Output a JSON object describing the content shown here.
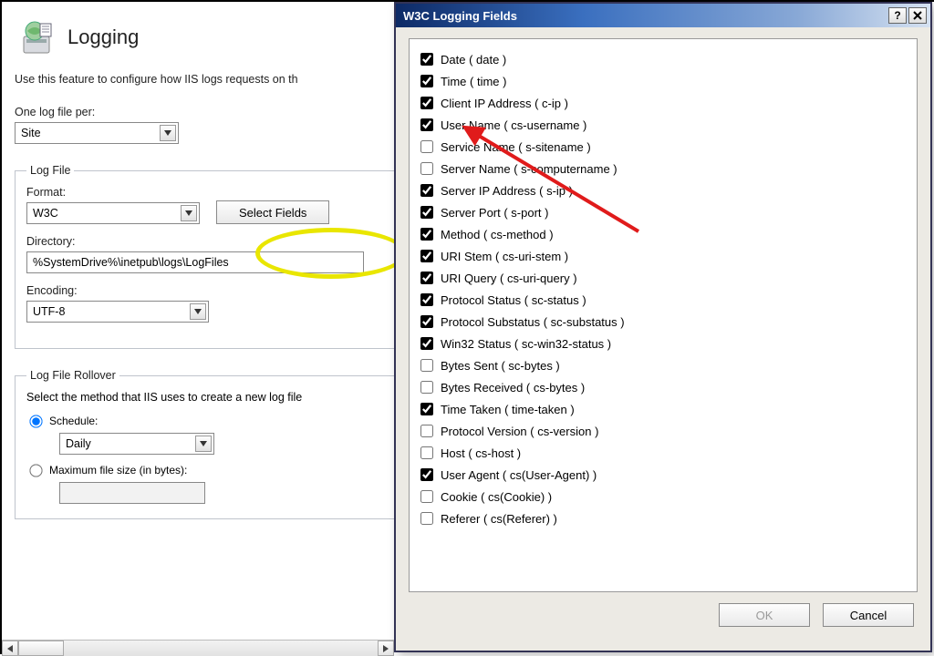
{
  "main": {
    "title": "Logging",
    "intro": "Use this feature to configure how IIS logs requests on th",
    "one_log_label": "One log file per:",
    "one_log_value": "Site",
    "log_file": {
      "legend": "Log File",
      "format_label": "Format:",
      "format_value": "W3C",
      "select_fields_label": "Select Fields",
      "directory_label": "Directory:",
      "directory_value": "%SystemDrive%\\inetpub\\logs\\LogFiles",
      "encoding_label": "Encoding:",
      "encoding_value": "UTF-8"
    },
    "rollover": {
      "legend": "Log File Rollover",
      "desc": "Select the method that IIS uses to create a new log file",
      "schedule_label": "Schedule:",
      "schedule_value": "Daily",
      "maxsize_label": "Maximum file size (in bytes):"
    }
  },
  "dialog": {
    "title": "W3C Logging Fields",
    "ok_label": "OK",
    "cancel_label": "Cancel",
    "fields": [
      {
        "label": "Date ( date )",
        "checked": true
      },
      {
        "label": "Time ( time )",
        "checked": true
      },
      {
        "label": "Client IP Address ( c-ip )",
        "checked": true
      },
      {
        "label": "User Name ( cs-username )",
        "checked": true
      },
      {
        "label": "Service Name ( s-sitename )",
        "checked": false
      },
      {
        "label": "Server Name ( s-computername )",
        "checked": false
      },
      {
        "label": "Server IP Address ( s-ip )",
        "checked": true
      },
      {
        "label": "Server Port ( s-port )",
        "checked": true
      },
      {
        "label": "Method ( cs-method )",
        "checked": true
      },
      {
        "label": "URI Stem ( cs-uri-stem )",
        "checked": true
      },
      {
        "label": "URI Query ( cs-uri-query )",
        "checked": true
      },
      {
        "label": "Protocol Status ( sc-status )",
        "checked": true
      },
      {
        "label": "Protocol Substatus ( sc-substatus )",
        "checked": true
      },
      {
        "label": "Win32 Status ( sc-win32-status )",
        "checked": true
      },
      {
        "label": "Bytes Sent ( sc-bytes )",
        "checked": false
      },
      {
        "label": "Bytes Received ( cs-bytes )",
        "checked": false
      },
      {
        "label": "Time Taken ( time-taken )",
        "checked": true
      },
      {
        "label": "Protocol Version ( cs-version )",
        "checked": false
      },
      {
        "label": "Host ( cs-host )",
        "checked": false
      },
      {
        "label": "User Agent ( cs(User-Agent) )",
        "checked": true
      },
      {
        "label": "Cookie ( cs(Cookie) )",
        "checked": false
      },
      {
        "label": "Referer ( cs(Referer) )",
        "checked": false
      }
    ]
  },
  "annotations": {
    "ellipse_color": "#e9e600",
    "arrow_color": "#e01b1b"
  }
}
